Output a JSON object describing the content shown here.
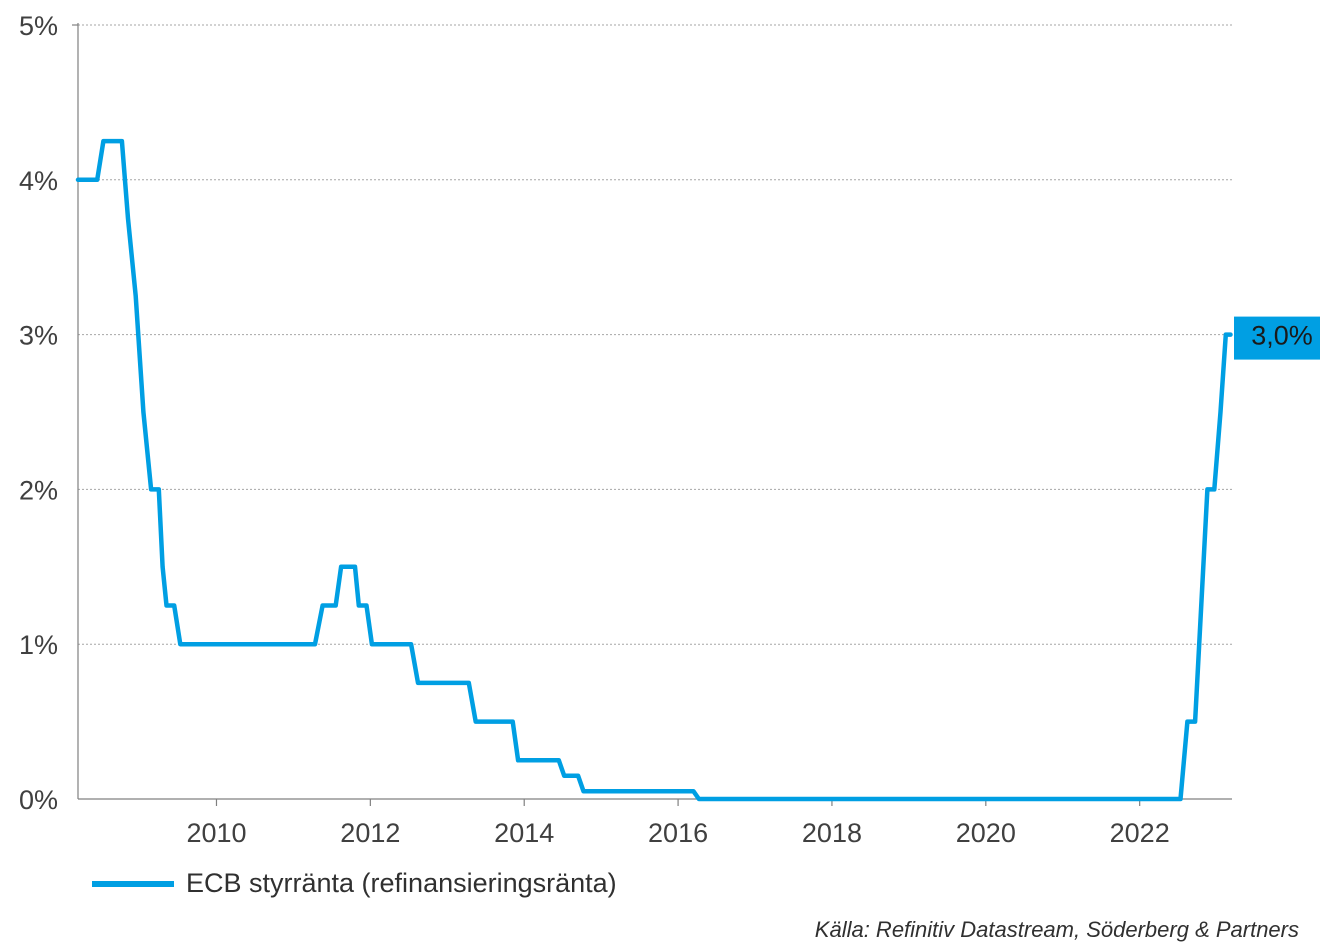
{
  "chart_data": {
    "type": "line",
    "title": "",
    "xlabel": "",
    "ylabel": "",
    "x_range": [
      2008.2,
      2023.2
    ],
    "ylim": [
      0,
      5
    ],
    "y_ticks": [
      "0%",
      "1%",
      "2%",
      "3%",
      "4%",
      "5%"
    ],
    "x_ticks": [
      "2010",
      "2012",
      "2014",
      "2016",
      "2018",
      "2020",
      "2022"
    ],
    "grid": "horizontal dotted",
    "series": [
      {
        "name": "ECB styrränta (refinansieringsränta)",
        "color": "#009fe3",
        "points": [
          [
            2008.2,
            4.0
          ],
          [
            2008.45,
            4.0
          ],
          [
            2008.53,
            4.25
          ],
          [
            2008.77,
            4.25
          ],
          [
            2008.85,
            3.75
          ],
          [
            2008.95,
            3.25
          ],
          [
            2009.05,
            2.5
          ],
          [
            2009.15,
            2.0
          ],
          [
            2009.25,
            2.0
          ],
          [
            2009.3,
            1.5
          ],
          [
            2009.35,
            1.25
          ],
          [
            2009.45,
            1.25
          ],
          [
            2009.53,
            1.0
          ],
          [
            2011.28,
            1.0
          ],
          [
            2011.38,
            1.25
          ],
          [
            2011.55,
            1.25
          ],
          [
            2011.62,
            1.5
          ],
          [
            2011.8,
            1.5
          ],
          [
            2011.85,
            1.25
          ],
          [
            2011.95,
            1.25
          ],
          [
            2012.02,
            1.0
          ],
          [
            2012.53,
            1.0
          ],
          [
            2012.62,
            0.75
          ],
          [
            2013.28,
            0.75
          ],
          [
            2013.37,
            0.5
          ],
          [
            2013.85,
            0.5
          ],
          [
            2013.92,
            0.25
          ],
          [
            2014.45,
            0.25
          ],
          [
            2014.52,
            0.15
          ],
          [
            2014.7,
            0.15
          ],
          [
            2014.77,
            0.05
          ],
          [
            2016.2,
            0.05
          ],
          [
            2016.27,
            0.0
          ],
          [
            2022.53,
            0.0
          ],
          [
            2022.62,
            0.5
          ],
          [
            2022.72,
            0.5
          ],
          [
            2022.88,
            2.0
          ],
          [
            2022.97,
            2.0
          ],
          [
            2023.05,
            2.5
          ],
          [
            2023.12,
            3.0
          ],
          [
            2023.18,
            3.0
          ]
        ]
      }
    ],
    "end_label": "3,0%",
    "end_label_color": "#009fe3"
  },
  "legend": {
    "label": "ECB styrränta (refinansieringsränta)"
  },
  "source": "Källa: Refinitiv Datastream, Söderberg & Partners"
}
